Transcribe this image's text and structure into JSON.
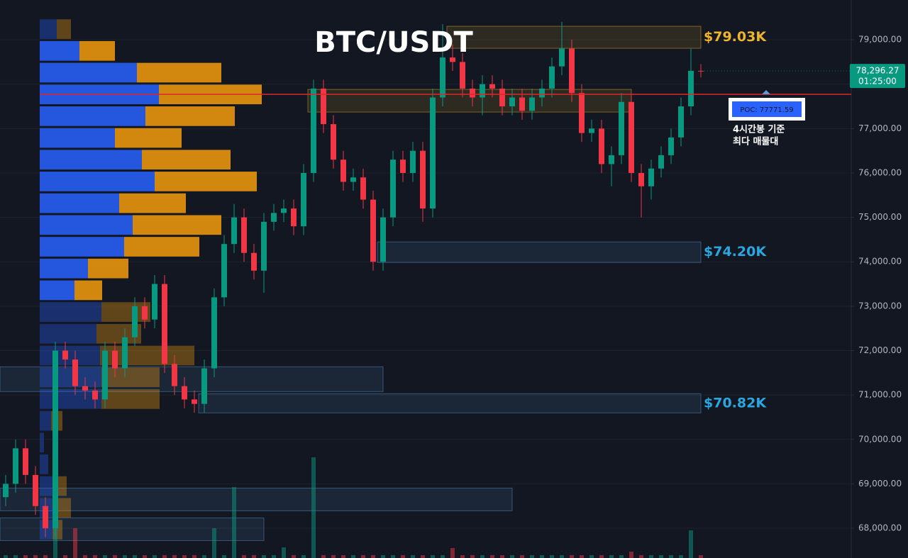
{
  "chart_data": {
    "type": "candlestick",
    "title": "BTC/USDT",
    "ylim": [
      67330,
      79895
    ],
    "yticks": [
      {
        "value": 68000,
        "label": "68,000.00"
      },
      {
        "value": 69000,
        "label": "69,000.00"
      },
      {
        "value": 70000,
        "label": "70,000.00"
      },
      {
        "value": 71000,
        "label": "71,000.00"
      },
      {
        "value": 72000,
        "label": "72,000.00"
      },
      {
        "value": 73000,
        "label": "73,000.00"
      },
      {
        "value": 74000,
        "label": "74,000.00"
      },
      {
        "value": 75000,
        "label": "75,000.00"
      },
      {
        "value": 76000,
        "label": "76,000.00"
      },
      {
        "value": 77000,
        "label": "77,000.00"
      },
      {
        "value": 78000,
        "label": "78,000.00"
      },
      {
        "value": 79000,
        "label": "79,000.00"
      }
    ],
    "grid": true,
    "up_color": "#089981",
    "down_color": "#f23645",
    "open": [
      68700,
      69000,
      69800,
      69200,
      68500,
      68000,
      72000,
      71800,
      71200,
      71100,
      70900,
      72000,
      71600,
      72300,
      73000,
      72700,
      73500,
      71700,
      71200,
      70900,
      70800,
      71600,
      73200,
      74400,
      75000,
      74200,
      73800,
      74900,
      75100,
      75200,
      74800,
      76000,
      77900,
      77100,
      76300,
      75800,
      75900,
      75400,
      74000,
      75000,
      76300,
      76000,
      76500,
      75200,
      77700,
      78600,
      78500,
      77900,
      77700,
      78000,
      77900,
      77500,
      77700,
      77400,
      77700,
      77900,
      78400,
      78800,
      77800,
      76900,
      77000,
      76200,
      76400,
      77600,
      76000,
      75700,
      76100,
      76400,
      76800,
      77500,
      78300
    ],
    "high": [
      69200,
      70000,
      70000,
      69400,
      68700,
      72200,
      72200,
      72000,
      71400,
      71300,
      72200,
      72200,
      72500,
      73200,
      73200,
      73700,
      73700,
      71900,
      71400,
      71100,
      71800,
      73400,
      74600,
      75300,
      75200,
      74400,
      75100,
      75300,
      75400,
      75400,
      76200,
      78100,
      78100,
      77300,
      76500,
      76100,
      76100,
      75600,
      75200,
      76500,
      76500,
      76700,
      76700,
      77900,
      79350,
      78900,
      78700,
      78100,
      78200,
      78200,
      78100,
      77900,
      77900,
      77900,
      78100,
      78600,
      79400,
      79000,
      78000,
      77200,
      77200,
      76600,
      77800,
      77800,
      76200,
      76300,
      76600,
      77000,
      77700,
      78800,
      78450
    ],
    "low": [
      68500,
      68800,
      69000,
      68300,
      67800,
      67800,
      71600,
      71000,
      70900,
      70700,
      70700,
      71400,
      71400,
      72100,
      72500,
      72500,
      71500,
      71000,
      70700,
      70600,
      70600,
      71400,
      73000,
      74200,
      74000,
      73600,
      73300,
      74700,
      74900,
      74600,
      74600,
      75800,
      76900,
      76100,
      75600,
      75600,
      75200,
      73800,
      73800,
      74800,
      75800,
      75800,
      74900,
      75000,
      77500,
      78300,
      77700,
      77500,
      77300,
      77700,
      77300,
      77300,
      77200,
      77200,
      77500,
      77700,
      78200,
      77600,
      76700,
      76700,
      76000,
      75700,
      76200,
      75800,
      75000,
      75400,
      75900,
      76200,
      76600,
      77300,
      78150
    ],
    "close": [
      69000,
      69800,
      69200,
      68500,
      68000,
      72000,
      71800,
      71200,
      71100,
      70900,
      72000,
      71600,
      72300,
      73000,
      72700,
      73500,
      71700,
      71200,
      70900,
      70800,
      71600,
      73200,
      74400,
      75000,
      74200,
      73800,
      74900,
      75100,
      75200,
      74800,
      76000,
      77900,
      77100,
      76300,
      75800,
      75900,
      75400,
      74000,
      75000,
      76300,
      76000,
      76500,
      75200,
      77700,
      78600,
      78500,
      77900,
      77700,
      78000,
      77900,
      77500,
      77700,
      77400,
      77700,
      77900,
      78400,
      78800,
      77800,
      76900,
      77000,
      76200,
      76400,
      77600,
      76000,
      75700,
      76100,
      76400,
      76800,
      77500,
      78300,
      78296.27
    ],
    "volume": [
      4,
      4,
      4,
      4,
      4,
      180,
      4,
      42,
      4,
      4,
      4,
      4,
      4,
      4,
      4,
      4,
      4,
      4,
      4,
      4,
      4,
      42,
      4,
      100,
      4,
      4,
      4,
      4,
      15,
      4,
      4,
      142,
      4,
      4,
      4,
      4,
      4,
      4,
      4,
      4,
      4,
      4,
      4,
      4,
      4,
      14,
      4,
      4,
      4,
      4,
      4,
      4,
      4,
      4,
      4,
      4,
      4,
      4,
      4,
      4,
      4,
      4,
      4,
      9,
      4,
      4,
      4,
      4,
      4,
      39,
      4
    ],
    "profile": {
      "bins": [
        79460,
        78970,
        78480,
        77990,
        77500,
        77010,
        76520,
        76030,
        75540,
        75050,
        74560,
        74070,
        73580,
        73090,
        72600,
        72110,
        71620,
        71130,
        70640,
        70150,
        69660,
        69170,
        68680,
        68190,
        67700
      ],
      "buy": [
        24,
        56,
        137,
        168,
        149,
        106,
        144,
        162,
        112,
        131,
        119,
        68,
        49,
        87,
        80,
        85,
        87,
        87,
        16,
        6,
        12,
        24,
        22,
        18
      ],
      "sell": [
        20,
        50,
        119,
        145,
        126,
        94,
        125,
        144,
        94,
        125,
        106,
        57,
        39,
        69,
        63,
        133,
        82,
        82,
        16,
        0,
        0,
        14,
        22,
        14
      ],
      "buy_color": "#2962ff",
      "sell_color": "#f59c0b",
      "value_area": [
        73090,
        78970
      ]
    },
    "zones": [
      {
        "low": 78808,
        "high": 79304,
        "start": 45,
        "end": 70,
        "color": "#f0b429",
        "label": "$79.03K"
      },
      {
        "low": 77371,
        "high": 77882,
        "start": 31,
        "end": 63,
        "color": "#f0b429"
      },
      {
        "low": 73984,
        "high": 74447,
        "start": 38,
        "end": 70,
        "color": "#5b9bd5",
        "label": "$74.20K"
      },
      {
        "low": 70597,
        "high": 71029,
        "start": 20,
        "end": 70,
        "color": "#5b9bd5",
        "label": "$70.82K"
      },
      {
        "low": 71077,
        "high": 71636,
        "start": 0,
        "end": 38,
        "color": "#5b9bd5"
      },
      {
        "low": 68393,
        "high": 68904,
        "start": 0,
        "end": 51,
        "color": "#5b9bd5"
      },
      {
        "low": 67722,
        "high": 68233,
        "start": 0,
        "end": 26,
        "color": "#5b9bd5"
      }
    ],
    "label_colors": {
      "$79.03K": "#f0b429",
      "$74.20K": "#29a8e0",
      "$70.82K": "#29a8e0"
    },
    "poc": 77771.59,
    "poc_label": "POC: 77771.59",
    "poc_note": [
      "4시간봉 기준",
      "최다 매물대"
    ],
    "price_tag": {
      "label": "78,296.27",
      "countdown": "01:25:00"
    }
  }
}
